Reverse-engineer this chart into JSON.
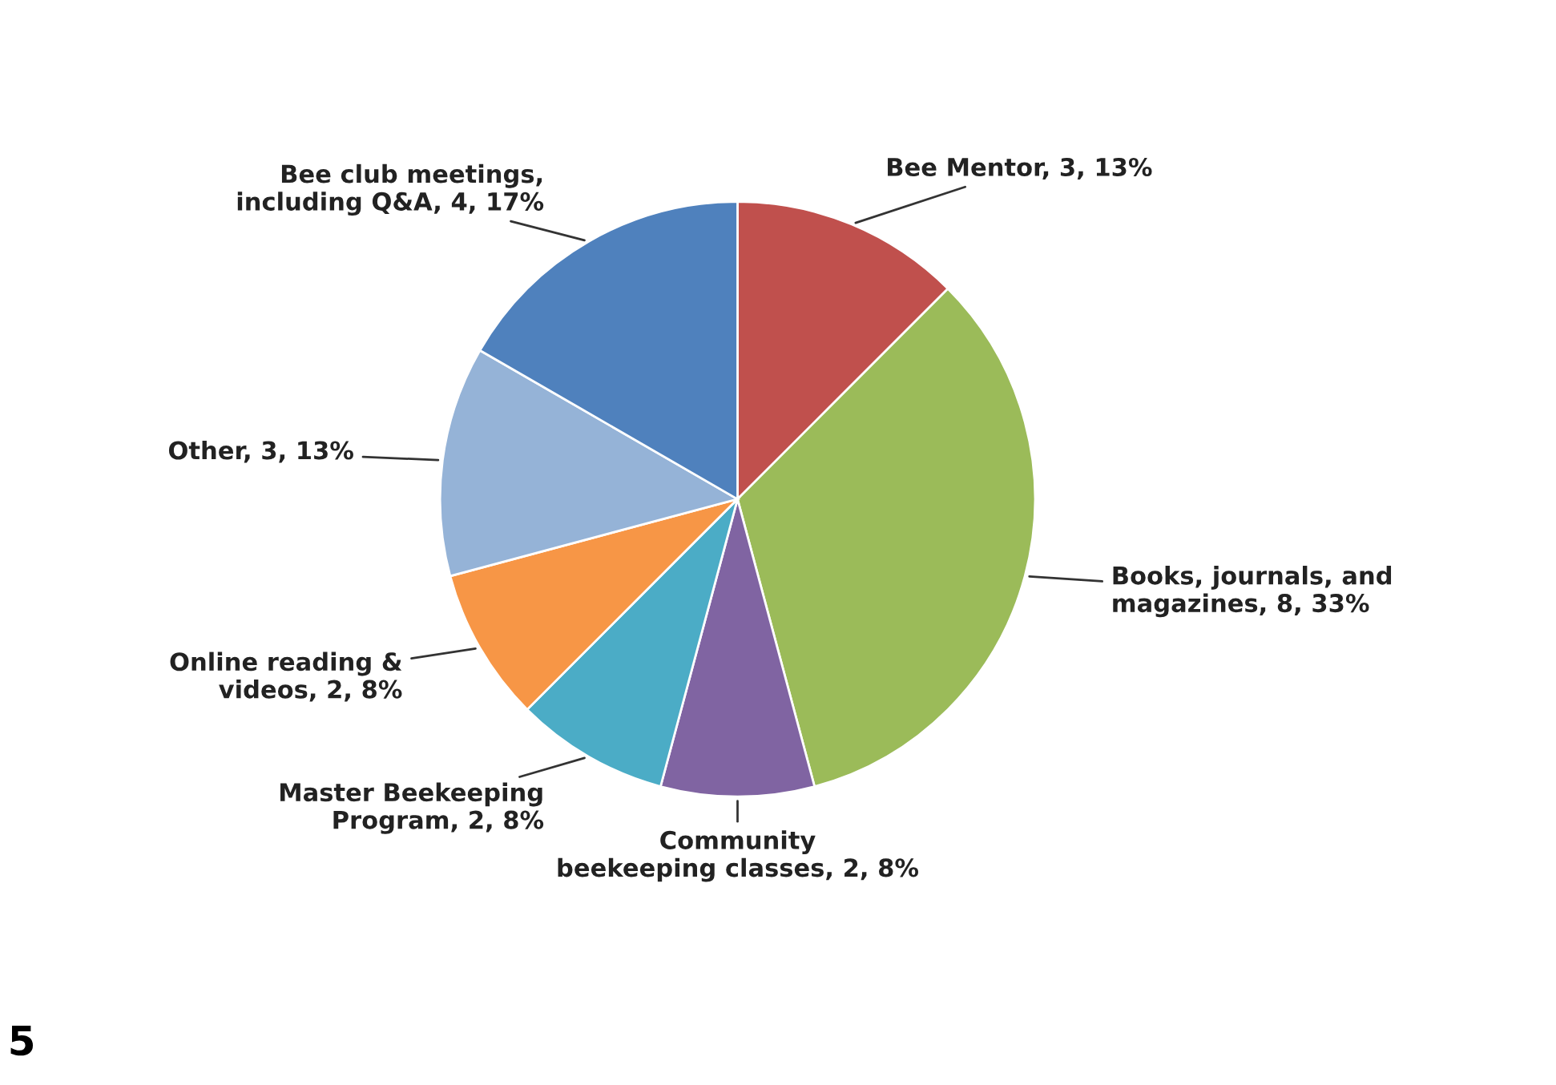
{
  "chart_data": {
    "type": "pie",
    "categories": [
      "Bee Mentor",
      "Books, journals, and\nmagazines",
      "Community\nbeekeeping classes",
      "Master Beekeeping\nProgram",
      "Online reading &\nvideos",
      "Other",
      "Bee club meetings,\nincluding Q&A"
    ],
    "values": [
      3,
      8,
      2,
      2,
      2,
      3,
      4
    ],
    "value_labels": [
      "3, 13%",
      "8, 33%",
      "2, 8%",
      "2, 8%",
      "2, 8%",
      "3, 13%",
      "4, 17%"
    ],
    "colors": [
      "#c0504d",
      "#9bbb59",
      "#8064a2",
      "#4bacc6",
      "#f79646",
      "#95b3d7",
      "#4f81bd"
    ],
    "annotations": [
      "5"
    ]
  }
}
